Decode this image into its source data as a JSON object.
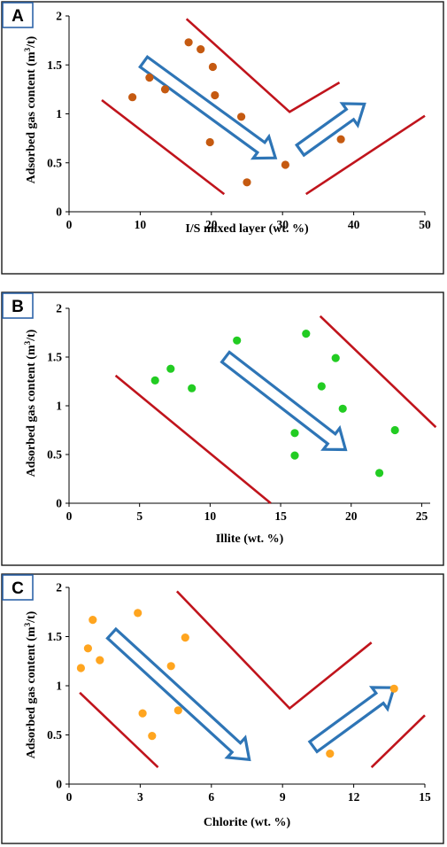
{
  "chart_data": [
    {
      "type": "scatter",
      "panel_label": "A",
      "xlabel": "I/S mixed layer (wt. %)",
      "ylabel": "Adsorbed gas content (m3/t)",
      "xlim": [
        0,
        50
      ],
      "ylim": [
        0,
        2
      ],
      "x_ticks": [
        "0",
        "10",
        "20",
        "30",
        "40",
        "50"
      ],
      "y_ticks": [
        "0",
        "0.5",
        "1",
        "1.5",
        "2"
      ],
      "grid": false,
      "marker_color": "#c55a11",
      "points": [
        {
          "x": 8.9,
          "y": 1.17
        },
        {
          "x": 11.3,
          "y": 1.37
        },
        {
          "x": 13.5,
          "y": 1.25
        },
        {
          "x": 16.8,
          "y": 1.73
        },
        {
          "x": 18.5,
          "y": 1.66
        },
        {
          "x": 20.2,
          "y": 1.48
        },
        {
          "x": 20.5,
          "y": 1.19
        },
        {
          "x": 19.8,
          "y": 0.71
        },
        {
          "x": 24.2,
          "y": 0.97
        },
        {
          "x": 25.0,
          "y": 0.3
        },
        {
          "x": 30.4,
          "y": 0.48
        },
        {
          "x": 38.2,
          "y": 0.74
        }
      ],
      "trend_lines": [
        {
          "x": [
            4.6,
            21.8
          ],
          "y": [
            1.14,
            0.18
          ]
        },
        {
          "x": [
            16.5,
            31.0,
            38.0
          ],
          "y": [
            1.97,
            1.02,
            1.32
          ]
        },
        {
          "x": [
            33.3,
            50.0
          ],
          "y": [
            0.18,
            0.98
          ]
        }
      ],
      "trend_arrows": [
        {
          "from": [
            10.5,
            1.53
          ],
          "to": [
            29.0,
            0.55
          ]
        },
        {
          "from": [
            32.5,
            0.63
          ],
          "to": [
            41.5,
            1.1
          ]
        }
      ]
    },
    {
      "type": "scatter",
      "panel_label": "B",
      "xlabel": "Illite (wt. %)",
      "ylabel": "Adsorbed gas content (m3/t)",
      "xlim": [
        0,
        25.6
      ],
      "ylim": [
        0,
        2
      ],
      "x_ticks": [
        "0",
        "5",
        "10",
        "15",
        "20",
        "25"
      ],
      "x_tick_values": [
        0,
        5,
        10,
        15,
        20,
        25
      ],
      "y_ticks": [
        "0",
        "0.5",
        "1",
        "1.5",
        "2"
      ],
      "grid": false,
      "marker_color": "#22cc22",
      "points": [
        {
          "x": 6.1,
          "y": 1.26
        },
        {
          "x": 7.2,
          "y": 1.38
        },
        {
          "x": 8.7,
          "y": 1.18
        },
        {
          "x": 11.9,
          "y": 1.67
        },
        {
          "x": 16.8,
          "y": 1.74
        },
        {
          "x": 18.9,
          "y": 1.49
        },
        {
          "x": 17.9,
          "y": 1.2
        },
        {
          "x": 19.4,
          "y": 0.97
        },
        {
          "x": 16.0,
          "y": 0.72
        },
        {
          "x": 16.0,
          "y": 0.49
        },
        {
          "x": 23.1,
          "y": 0.75
        },
        {
          "x": 22.0,
          "y": 0.31
        }
      ],
      "trend_lines": [
        {
          "x": [
            3.3,
            14.3
          ],
          "y": [
            1.31,
            0.0
          ]
        },
        {
          "x": [
            17.8,
            26.0
          ],
          "y": [
            1.92,
            0.78
          ]
        }
      ],
      "trend_arrows": [
        {
          "from": [
            11.1,
            1.5
          ],
          "to": [
            19.6,
            0.55
          ]
        }
      ]
    },
    {
      "type": "scatter",
      "panel_label": "C",
      "xlabel": "Chlorite  (wt. %)",
      "ylabel": "Adsorbed gas content (m3/t)",
      "xlim": [
        0,
        15
      ],
      "ylim": [
        0,
        2
      ],
      "x_ticks": [
        "0",
        "3",
        "6",
        "9",
        "12",
        "15"
      ],
      "y_ticks": [
        "0",
        "0.5",
        "1",
        "1.5",
        "2"
      ],
      "grid": false,
      "marker_color": "#ffa51f",
      "points": [
        {
          "x": 0.5,
          "y": 1.18
        },
        {
          "x": 0.8,
          "y": 1.38
        },
        {
          "x": 1.0,
          "y": 1.67
        },
        {
          "x": 1.3,
          "y": 1.26
        },
        {
          "x": 2.9,
          "y": 1.74
        },
        {
          "x": 3.1,
          "y": 0.72
        },
        {
          "x": 3.5,
          "y": 0.49
        },
        {
          "x": 4.3,
          "y": 1.2
        },
        {
          "x": 4.6,
          "y": 0.75
        },
        {
          "x": 4.9,
          "y": 1.49
        },
        {
          "x": 11.0,
          "y": 0.31
        },
        {
          "x": 13.7,
          "y": 0.97
        }
      ],
      "trend_lines": [
        {
          "x": [
            0.45,
            3.75
          ],
          "y": [
            0.93,
            0.17
          ]
        },
        {
          "x": [
            4.55,
            9.3,
            12.75
          ],
          "y": [
            1.96,
            0.77,
            1.44
          ]
        },
        {
          "x": [
            12.75,
            15.0
          ],
          "y": [
            0.17,
            0.7
          ]
        }
      ],
      "trend_arrows": [
        {
          "from": [
            1.8,
            1.53
          ],
          "to": [
            7.6,
            0.25
          ]
        },
        {
          "from": [
            10.3,
            0.38
          ],
          "to": [
            13.7,
            0.98
          ]
        }
      ]
    }
  ]
}
